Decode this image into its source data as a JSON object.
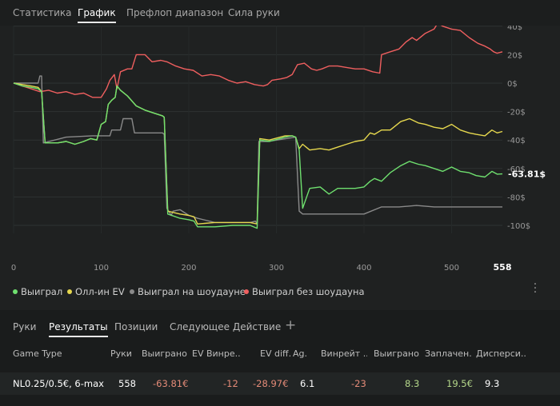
{
  "top_tabs": [
    "Статистика",
    "График",
    "Префлоп диапазон",
    "Сила руки"
  ],
  "active_top_tab": 1,
  "chart_data": {
    "type": "line",
    "x_ticks": [
      "0",
      "100",
      "200",
      "300",
      "400",
      "500"
    ],
    "x_end_label": "558",
    "y_ticks": [
      "40$",
      "20$",
      "0$",
      "-20$",
      "-40$",
      "-60$",
      "-80$",
      "-100$"
    ],
    "xlim": [
      0,
      558
    ],
    "ylim": [
      -110,
      45
    ],
    "end_value_label": "-63.81$",
    "series": [
      {
        "name": "Выиграл",
        "color": "#6fe06f",
        "points": [
          [
            0,
            0
          ],
          [
            10,
            -2
          ],
          [
            20,
            -3
          ],
          [
            28,
            -4
          ],
          [
            32,
            -6
          ],
          [
            36,
            -42
          ],
          [
            50,
            -42
          ],
          [
            60,
            -41
          ],
          [
            70,
            -43
          ],
          [
            80,
            -41
          ],
          [
            88,
            -39
          ],
          [
            95,
            -40
          ],
          [
            100,
            -29
          ],
          [
            105,
            -27
          ],
          [
            108,
            -15
          ],
          [
            112,
            -12
          ],
          [
            116,
            -10
          ],
          [
            118,
            -2
          ],
          [
            122,
            -5
          ],
          [
            130,
            -9
          ],
          [
            140,
            -16
          ],
          [
            150,
            -19
          ],
          [
            160,
            -21
          ],
          [
            170,
            -23
          ],
          [
            172,
            -24
          ],
          [
            176,
            -92
          ],
          [
            190,
            -95
          ],
          [
            200,
            -96
          ],
          [
            206,
            -97
          ],
          [
            210,
            -101
          ],
          [
            230,
            -101
          ],
          [
            250,
            -100
          ],
          [
            270,
            -100
          ],
          [
            278,
            -102
          ],
          [
            281,
            -40
          ],
          [
            292,
            -41
          ],
          [
            310,
            -38
          ],
          [
            318,
            -37
          ],
          [
            322,
            -38
          ],
          [
            326,
            -47
          ],
          [
            330,
            -88
          ],
          [
            338,
            -74
          ],
          [
            350,
            -73
          ],
          [
            360,
            -78
          ],
          [
            370,
            -74
          ],
          [
            380,
            -74
          ],
          [
            390,
            -74
          ],
          [
            400,
            -73
          ],
          [
            407,
            -69
          ],
          [
            412,
            -67
          ],
          [
            420,
            -69
          ],
          [
            430,
            -63
          ],
          [
            442,
            -58
          ],
          [
            452,
            -55
          ],
          [
            462,
            -57
          ],
          [
            470,
            -58
          ],
          [
            480,
            -60
          ],
          [
            490,
            -62
          ],
          [
            500,
            -59
          ],
          [
            510,
            -62
          ],
          [
            520,
            -63
          ],
          [
            528,
            -65
          ],
          [
            538,
            -66
          ],
          [
            546,
            -62
          ],
          [
            552,
            -64
          ],
          [
            558,
            -63.81
          ]
        ]
      },
      {
        "name": "Олл-ин EV",
        "color": "#e6d84e",
        "points": [
          [
            0,
            0
          ],
          [
            10,
            -1
          ],
          [
            20,
            -2
          ],
          [
            28,
            -3
          ],
          [
            32,
            -6
          ],
          [
            36,
            -42
          ],
          [
            50,
            -42
          ],
          [
            60,
            -41
          ],
          [
            70,
            -43
          ],
          [
            80,
            -41
          ],
          [
            88,
            -39
          ],
          [
            95,
            -40
          ],
          [
            100,
            -29
          ],
          [
            105,
            -27
          ],
          [
            108,
            -15
          ],
          [
            112,
            -12
          ],
          [
            116,
            -10
          ],
          [
            118,
            -2
          ],
          [
            122,
            -5
          ],
          [
            130,
            -9
          ],
          [
            140,
            -16
          ],
          [
            150,
            -19
          ],
          [
            160,
            -21
          ],
          [
            170,
            -23
          ],
          [
            172,
            -24
          ],
          [
            176,
            -90
          ],
          [
            190,
            -92
          ],
          [
            200,
            -93
          ],
          [
            206,
            -94
          ],
          [
            210,
            -99
          ],
          [
            230,
            -98
          ],
          [
            250,
            -98
          ],
          [
            270,
            -98
          ],
          [
            278,
            -99
          ],
          [
            281,
            -39
          ],
          [
            292,
            -40
          ],
          [
            310,
            -37
          ],
          [
            318,
            -37
          ],
          [
            322,
            -38
          ],
          [
            326,
            -46
          ],
          [
            330,
            -43
          ],
          [
            338,
            -47
          ],
          [
            350,
            -46
          ],
          [
            360,
            -47
          ],
          [
            370,
            -45
          ],
          [
            380,
            -43
          ],
          [
            390,
            -41
          ],
          [
            400,
            -40
          ],
          [
            407,
            -35
          ],
          [
            412,
            -36
          ],
          [
            420,
            -33
          ],
          [
            430,
            -33
          ],
          [
            442,
            -27
          ],
          [
            452,
            -25
          ],
          [
            462,
            -28
          ],
          [
            470,
            -29
          ],
          [
            480,
            -31
          ],
          [
            490,
            -32
          ],
          [
            500,
            -29
          ],
          [
            510,
            -33
          ],
          [
            520,
            -35
          ],
          [
            528,
            -36
          ],
          [
            538,
            -37
          ],
          [
            546,
            -33
          ],
          [
            552,
            -35
          ],
          [
            558,
            -34
          ]
        ]
      },
      {
        "name": "Выиграл на шоудауне",
        "color": "#8a8a8a",
        "points": [
          [
            0,
            0
          ],
          [
            28,
            0
          ],
          [
            30,
            5
          ],
          [
            32,
            5
          ],
          [
            34,
            -42
          ],
          [
            60,
            -38
          ],
          [
            90,
            -37
          ],
          [
            110,
            -37
          ],
          [
            112,
            -33
          ],
          [
            122,
            -33
          ],
          [
            125,
            -25
          ],
          [
            135,
            -25
          ],
          [
            138,
            -35
          ],
          [
            170,
            -35
          ],
          [
            172,
            -36
          ],
          [
            175,
            -88
          ],
          [
            180,
            -93
          ],
          [
            182,
            -90
          ],
          [
            190,
            -89
          ],
          [
            200,
            -93
          ],
          [
            210,
            -95
          ],
          [
            230,
            -98
          ],
          [
            250,
            -98
          ],
          [
            270,
            -98
          ],
          [
            276,
            -97
          ],
          [
            278,
            -99
          ],
          [
            280,
            -41
          ],
          [
            290,
            -41
          ],
          [
            322,
            -38
          ],
          [
            326,
            -90
          ],
          [
            330,
            -92
          ],
          [
            400,
            -92
          ],
          [
            420,
            -87
          ],
          [
            440,
            -87
          ],
          [
            460,
            -86
          ],
          [
            480,
            -87
          ],
          [
            520,
            -87
          ],
          [
            558,
            -87
          ]
        ]
      },
      {
        "name": "Выиграл без шоудауна",
        "color": "#ef5f5f",
        "points": [
          [
            0,
            0
          ],
          [
            10,
            -2
          ],
          [
            20,
            -4
          ],
          [
            30,
            -6
          ],
          [
            40,
            -5
          ],
          [
            50,
            -7
          ],
          [
            60,
            -6
          ],
          [
            70,
            -8
          ],
          [
            80,
            -7
          ],
          [
            90,
            -10
          ],
          [
            100,
            -10
          ],
          [
            106,
            -4
          ],
          [
            110,
            2
          ],
          [
            115,
            6
          ],
          [
            118,
            -4
          ],
          [
            122,
            8
          ],
          [
            130,
            10
          ],
          [
            135,
            10
          ],
          [
            140,
            20
          ],
          [
            150,
            20
          ],
          [
            158,
            15
          ],
          [
            168,
            16
          ],
          [
            175,
            15
          ],
          [
            185,
            12
          ],
          [
            195,
            10
          ],
          [
            205,
            9
          ],
          [
            215,
            5
          ],
          [
            225,
            6
          ],
          [
            235,
            5
          ],
          [
            245,
            2
          ],
          [
            255,
            0
          ],
          [
            265,
            1
          ],
          [
            275,
            -1
          ],
          [
            285,
            -2
          ],
          [
            290,
            -1
          ],
          [
            295,
            2
          ],
          [
            305,
            3
          ],
          [
            312,
            4
          ],
          [
            318,
            6
          ],
          [
            324,
            13
          ],
          [
            332,
            14
          ],
          [
            340,
            10
          ],
          [
            346,
            9
          ],
          [
            352,
            10
          ],
          [
            360,
            12
          ],
          [
            370,
            12
          ],
          [
            380,
            11
          ],
          [
            390,
            10
          ],
          [
            400,
            10
          ],
          [
            410,
            8
          ],
          [
            418,
            7
          ],
          [
            420,
            20
          ],
          [
            430,
            22
          ],
          [
            440,
            24
          ],
          [
            448,
            29
          ],
          [
            455,
            32
          ],
          [
            460,
            30
          ],
          [
            470,
            35
          ],
          [
            480,
            38
          ],
          [
            484,
            42
          ],
          [
            490,
            40
          ],
          [
            500,
            38
          ],
          [
            510,
            37
          ],
          [
            520,
            32
          ],
          [
            530,
            28
          ],
          [
            538,
            26
          ],
          [
            544,
            24
          ],
          [
            548,
            22
          ],
          [
            552,
            21
          ],
          [
            558,
            22
          ]
        ]
      }
    ]
  },
  "legend": [
    {
      "label": "Выиграл",
      "color": "#6fe06f"
    },
    {
      "label": "Олл-ин EV",
      "color": "#e6d84e"
    },
    {
      "label": "Выиграл на шоудауне",
      "color": "#8a8a8a"
    },
    {
      "label": "Выиграл без шоудауна",
      "color": "#ef5f5f"
    }
  ],
  "bottom_tabs": [
    "Руки",
    "Результаты",
    "Позиции",
    "Следующее Действие"
  ],
  "active_bottom_tab": 1,
  "add_tab_icon": "plus-icon",
  "more_icon": "vertical-ellipsis-icon",
  "table": {
    "headers": [
      "Game Type",
      "Руки",
      "Выиграно",
      "EV Винре...",
      "EV diff.",
      "Ag.",
      "Винрейт ...",
      "Выиграно...",
      "Заплачен...",
      "Дисперси..."
    ],
    "row": [
      "NL0.25/0.5€, 6-max",
      "558",
      "-63.81€",
      "-12",
      "-28.97€",
      "6.1",
      "-23",
      "8.3",
      "19.5€",
      "9.3"
    ]
  }
}
